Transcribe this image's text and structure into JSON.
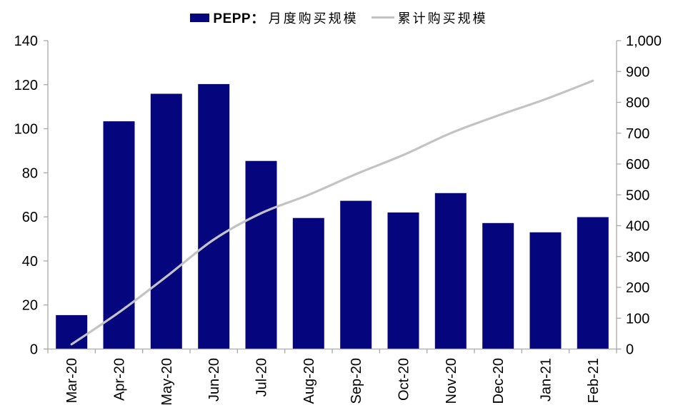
{
  "legend": {
    "series1_prefix": "PEPP：",
    "series1_label": "月度购买规模",
    "series2_label": "累计购买规模"
  },
  "colors": {
    "bar": "#05057E",
    "line": "#C3C3C3",
    "axis": "#A9A9A9",
    "text": "#000000"
  },
  "chart_data": {
    "type": "combo",
    "title": "",
    "categories": [
      "Mar-20",
      "Apr-20",
      "May-20",
      "Jun-20",
      "Jul-20",
      "Aug-20",
      "Sep-20",
      "Oct-20",
      "Nov-20",
      "Dec-20",
      "Jan-21",
      "Feb-21"
    ],
    "series": [
      {
        "name": "PEPP：月度购买规模",
        "type": "bar",
        "axis": "left",
        "values": [
          15.4,
          103.4,
          115.9,
          120.3,
          85.4,
          59.5,
          67.3,
          62.0,
          70.8,
          57.2,
          53.0,
          59.9
        ]
      },
      {
        "name": "累计购买规模",
        "type": "line",
        "axis": "right",
        "values": [
          15.4,
          118.8,
          234.7,
          355.0,
          440.4,
          499.9,
          567.2,
          629.2,
          700.0,
          757.2,
          810.2,
          870.1
        ]
      }
    ],
    "left_axis": {
      "min": 0,
      "max": 140,
      "step": 20
    },
    "right_axis": {
      "min": 0,
      "max": 1000,
      "step": 100
    },
    "grid": false,
    "legend_position": "top"
  }
}
